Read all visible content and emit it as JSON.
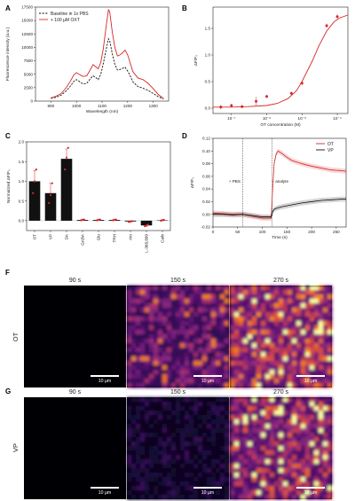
{
  "colors": {
    "red": "#d62728",
    "black": "#111111",
    "dark_red": "#8b1a1a"
  },
  "chart_data": [
    {
      "panel": "A",
      "type": "line",
      "xlabel": "Wavelength (nm)",
      "ylabel": "Fluorescence intensity (a.u.)",
      "xlim": [
        840,
        1360
      ],
      "ylim": [
        0,
        17500
      ],
      "xticks": [
        900,
        1000,
        1100,
        1200,
        1300
      ],
      "yticks": [
        0,
        2500,
        5000,
        7500,
        10000,
        12500,
        15000,
        17500
      ],
      "legend_position": "top-left",
      "series": [
        {
          "name": "Baseline in 1x PBS",
          "style": "dashed",
          "color": "#111111",
          "x": [
            900,
            920,
            940,
            960,
            975,
            990,
            1000,
            1010,
            1025,
            1040,
            1055,
            1065,
            1075,
            1085,
            1095,
            1105,
            1115,
            1125,
            1130,
            1140,
            1150,
            1160,
            1170,
            1180,
            1190,
            1200,
            1210,
            1220,
            1240,
            1260,
            1280,
            1300,
            1320,
            1340
          ],
          "y": [
            500,
            700,
            1100,
            1900,
            2700,
            3700,
            4000,
            3700,
            3200,
            3300,
            4200,
            4700,
            4400,
            4000,
            5000,
            7000,
            9400,
            11600,
            11200,
            8800,
            6800,
            5800,
            5900,
            6100,
            6300,
            5600,
            4700,
            3600,
            2700,
            2400,
            2000,
            1400,
            800,
            400
          ]
        },
        {
          "name": "+ 100 µM OXT",
          "style": "solid",
          "color": "#d62728",
          "x": [
            900,
            920,
            940,
            960,
            975,
            990,
            1000,
            1010,
            1025,
            1040,
            1055,
            1065,
            1075,
            1085,
            1095,
            1105,
            1115,
            1125,
            1130,
            1140,
            1150,
            1160,
            1170,
            1180,
            1190,
            1200,
            1210,
            1220,
            1240,
            1260,
            1280,
            1300,
            1320,
            1340
          ],
          "y": [
            600,
            900,
            1400,
            2500,
            3600,
            4900,
            5300,
            5000,
            4600,
            4700,
            5900,
            6800,
            6400,
            6000,
            7200,
            9800,
            13600,
            17000,
            16600,
            12800,
            10000,
            8400,
            8600,
            9000,
            9500,
            8600,
            7100,
            5500,
            4300,
            4000,
            3300,
            2300,
            1200,
            500
          ]
        }
      ]
    },
    {
      "panel": "B",
      "type": "scatter",
      "xlabel": "OT concentration (M)",
      "ylabel": "ΔF/F₀",
      "xscale": "log",
      "xlim": [
        3e-08,
        0.0002
      ],
      "ylim": [
        -0.1,
        1.9
      ],
      "xticks": [
        1e-07,
        1e-06,
        1e-05,
        0.0001
      ],
      "xtick_labels": [
        "10⁻⁷",
        "10⁻⁶",
        "10⁻⁵",
        "10⁻⁴"
      ],
      "yticks": [
        0.0,
        0.5,
        1.0,
        1.5
      ],
      "points": {
        "x": [
          5e-08,
          1e-07,
          2e-07,
          5e-07,
          1e-06,
          5e-06,
          1e-05,
          5e-05,
          0.0001
        ],
        "y": [
          0.02,
          0.05,
          0.03,
          0.13,
          0.22,
          0.28,
          0.47,
          1.55,
          1.72
        ],
        "err": [
          0.04,
          0.03,
          0.03,
          0.08,
          0.03,
          0.03,
          0.04,
          0.04,
          0.04
        ]
      },
      "fit": {
        "x": [
          3e-08,
          1e-07,
          3e-07,
          1e-06,
          2e-06,
          4e-06,
          7e-06,
          1e-05,
          2e-05,
          3e-05,
          5e-05,
          8e-05,
          0.00012,
          0.0002
        ],
        "y": [
          0.02,
          0.02,
          0.03,
          0.05,
          0.09,
          0.18,
          0.33,
          0.5,
          0.9,
          1.17,
          1.45,
          1.62,
          1.7,
          1.75
        ]
      }
    },
    {
      "panel": "C",
      "type": "bar",
      "ylabel": "Normalized ΔF/F₀",
      "ylim": [
        -0.25,
        2.0
      ],
      "yticks": [
        0.0,
        0.5,
        1.0,
        1.5,
        2.0
      ],
      "categories": [
        "OT",
        "VP",
        "DA",
        "GABA",
        "Glu",
        "TRH",
        "Ato",
        "L-368,899",
        "Carb"
      ],
      "values": [
        1.0,
        0.7,
        1.57,
        0.02,
        0.02,
        0.02,
        -0.02,
        -0.12,
        0.01
      ],
      "errors": [
        0.27,
        0.25,
        0.25,
        0.02,
        0.02,
        0.02,
        0.02,
        0.02,
        0.02
      ],
      "replicates": [
        [
          0.7,
          1.0,
          1.3
        ],
        [
          0.45,
          0.65,
          0.95
        ],
        [
          1.3,
          1.6,
          1.85
        ],
        [
          0.01,
          0.02,
          0.03
        ],
        [
          0.01,
          0.02,
          0.03
        ],
        [
          0.01,
          0.02,
          0.03
        ],
        [
          -0.03,
          -0.02,
          -0.01
        ],
        [
          -0.14,
          -0.12,
          -0.1
        ],
        [
          0.0,
          0.01,
          0.02
        ]
      ]
    },
    {
      "panel": "D",
      "type": "line",
      "xlabel": "Time (s)",
      "ylabel": "ΔF/F₀",
      "xlim": [
        0,
        270
      ],
      "ylim": [
        -0.02,
        0.12
      ],
      "xticks": [
        0,
        50,
        100,
        150,
        200,
        250
      ],
      "yticks": [
        -0.02,
        0.0,
        0.02,
        0.04,
        0.06,
        0.08,
        0.1,
        0.12
      ],
      "legend_position": "top-right",
      "events": [
        {
          "x": 60,
          "label": "+ PBS"
        },
        {
          "x": 120,
          "label": "+ analyte"
        }
      ],
      "series": [
        {
          "name": "OT",
          "color": "#d62728",
          "x": [
            0,
            20,
            40,
            60,
            80,
            100,
            118,
            121,
            124,
            128,
            132,
            140,
            150,
            160,
            180,
            200,
            220,
            240,
            260,
            270
          ],
          "y": [
            0.002,
            0.001,
            0.0,
            0.0,
            -0.003,
            -0.006,
            -0.006,
            0.04,
            0.08,
            0.095,
            0.1,
            0.096,
            0.09,
            0.085,
            0.08,
            0.076,
            0.073,
            0.07,
            0.069,
            0.068
          ]
        },
        {
          "name": "VP",
          "color": "#111111",
          "x": [
            0,
            20,
            40,
            60,
            80,
            100,
            118,
            121,
            124,
            130,
            140,
            160,
            180,
            200,
            220,
            240,
            260,
            270
          ],
          "y": [
            0.0,
            0.0,
            -0.001,
            0.0,
            -0.002,
            -0.004,
            -0.004,
            0.004,
            0.008,
            0.01,
            0.012,
            0.015,
            0.018,
            0.02,
            0.022,
            0.023,
            0.024,
            0.024
          ]
        }
      ]
    }
  ],
  "panels": {
    "A": {
      "letter": "A"
    },
    "B": {
      "letter": "B"
    },
    "C": {
      "letter": "C"
    },
    "D": {
      "letter": "D"
    },
    "F": {
      "letter": "F",
      "row_label": "OT",
      "columns": [
        "90 s",
        "150 s",
        "270 s"
      ],
      "intensity": [
        0.02,
        0.55,
        0.85
      ],
      "scalebar": "10 µm"
    },
    "G": {
      "letter": "G",
      "row_label": "VP",
      "columns": [
        "90 s",
        "150 s",
        "270 s"
      ],
      "intensity": [
        0.03,
        0.15,
        0.75
      ],
      "scalebar": "10 µm"
    }
  }
}
